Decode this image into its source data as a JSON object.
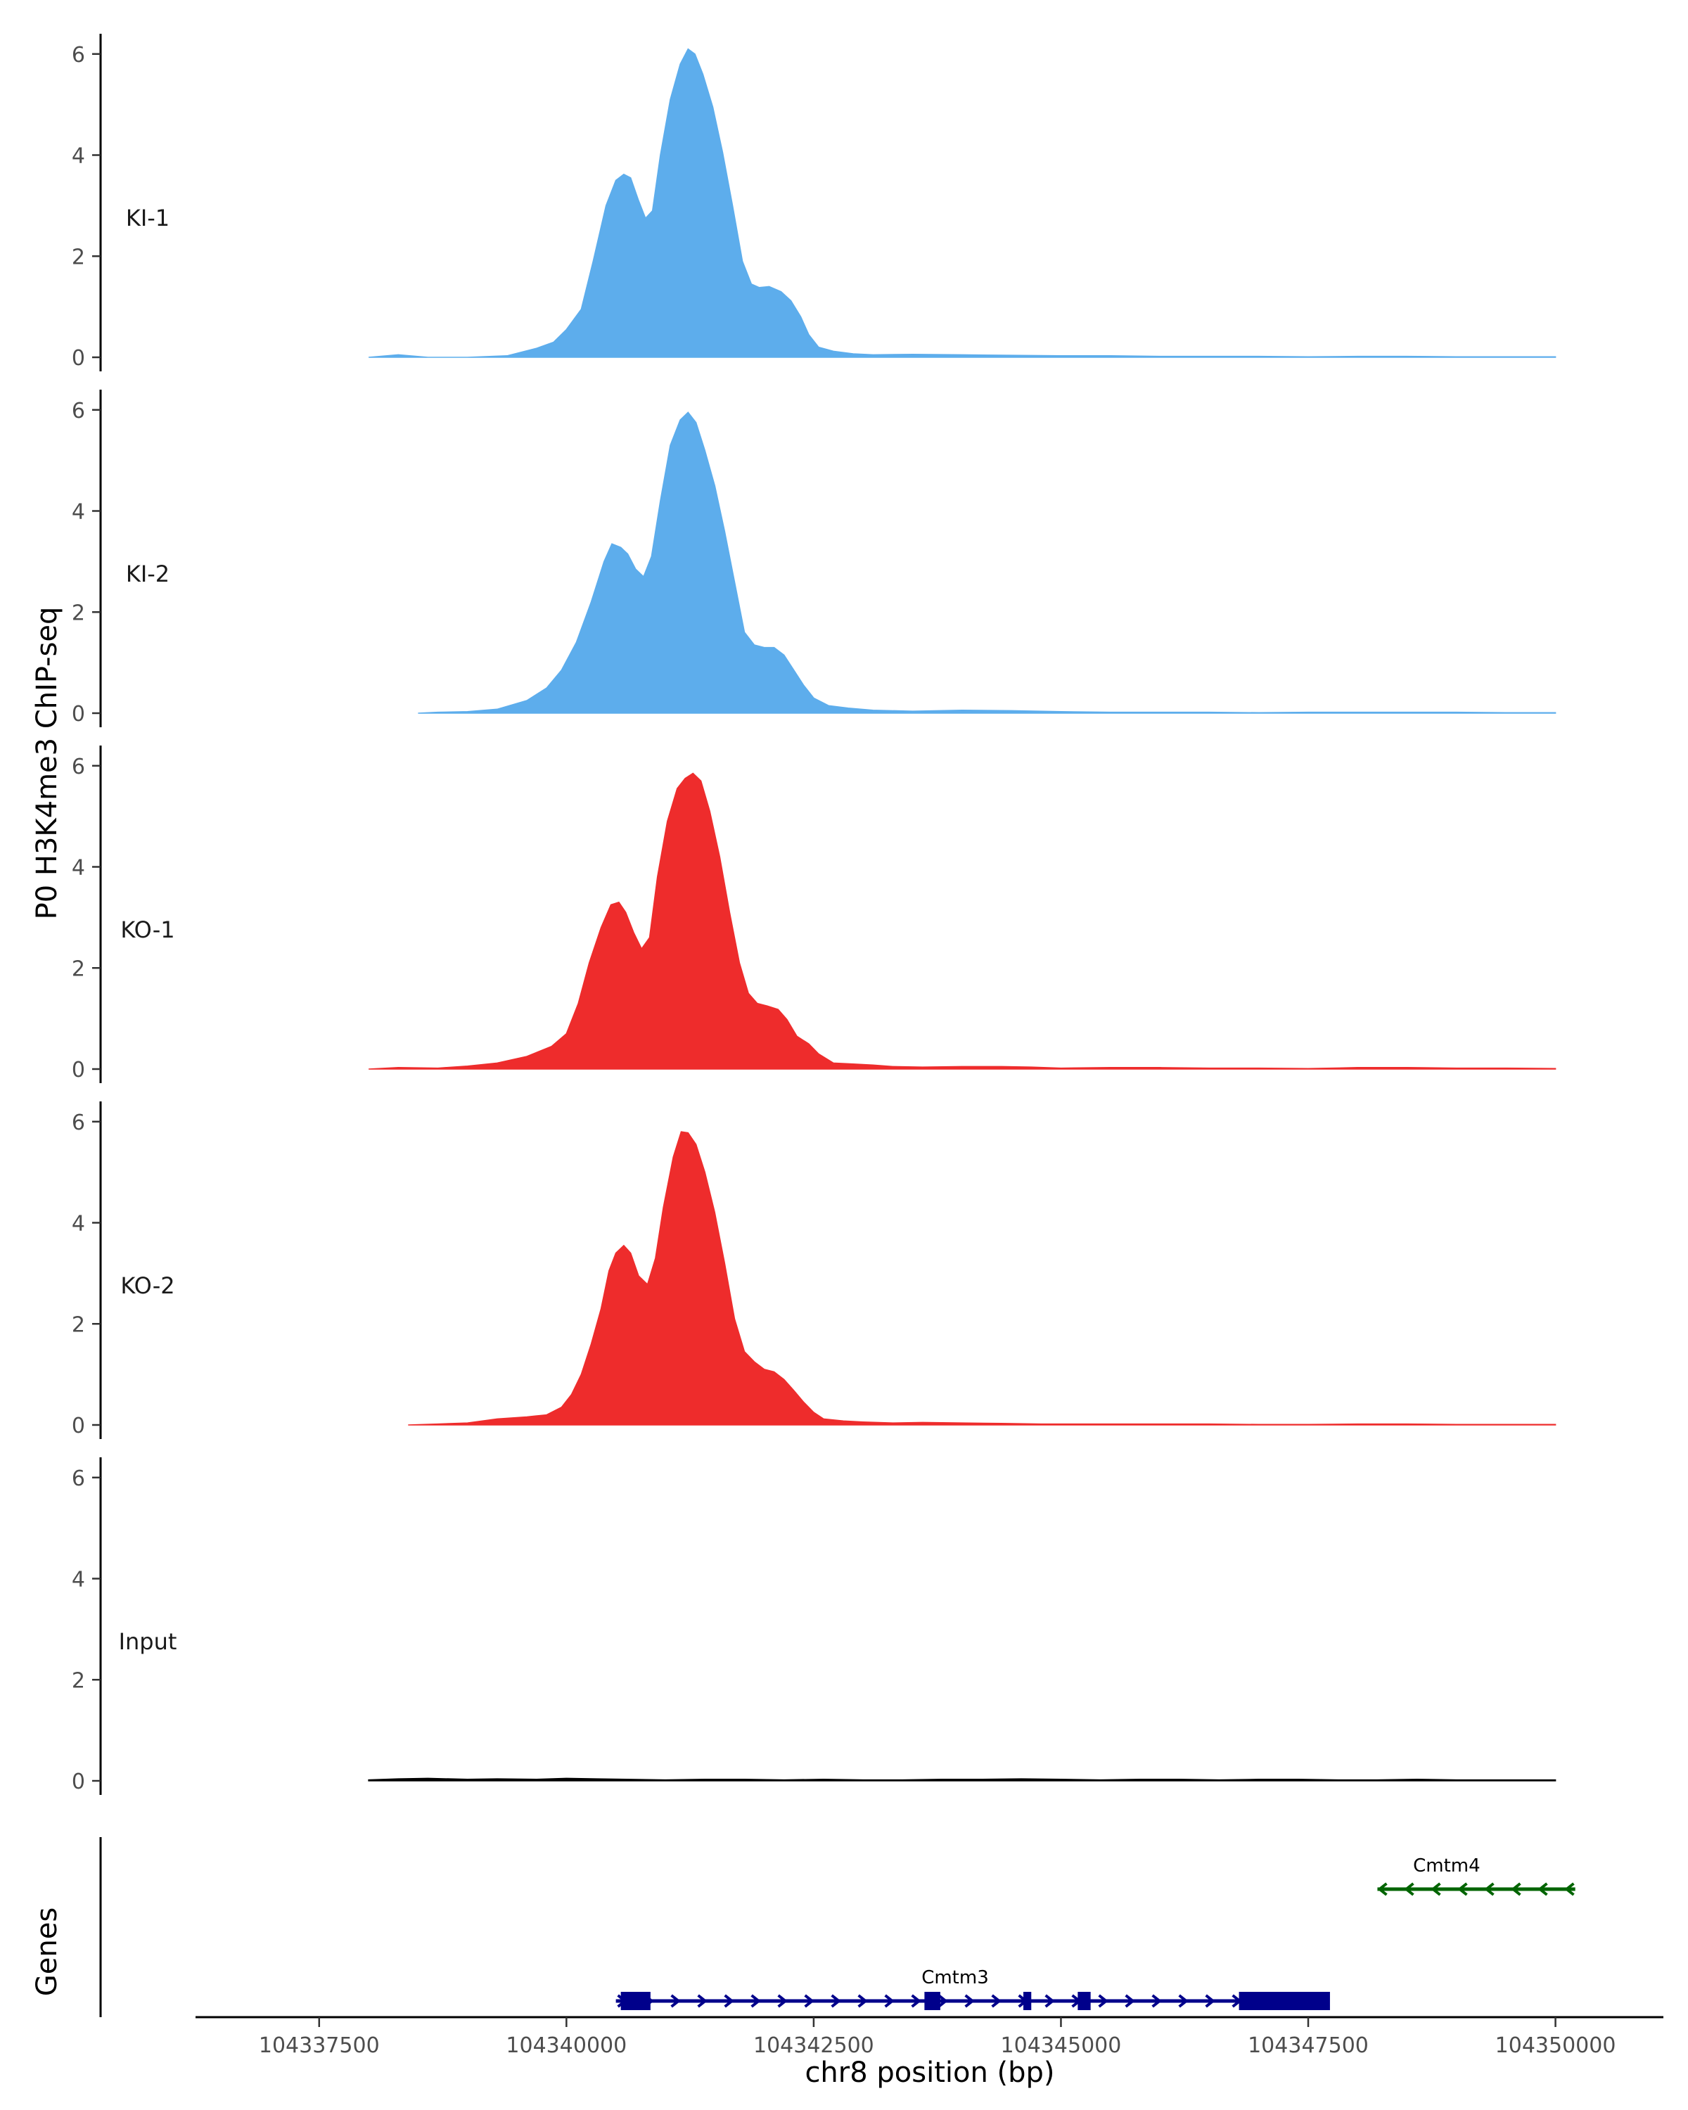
{
  "chart_data": {
    "type": "area",
    "ylabel": "P0 H3K4me3 ChIP-seq",
    "xlabel": "chr8 position (bp)",
    "xlim": [
      104336250,
      104350700
    ],
    "ylim": [
      0,
      6.4
    ],
    "y_ticks": [
      0,
      2,
      4,
      6
    ],
    "y_tick_labels": [
      "0",
      "2",
      "4",
      "6"
    ],
    "x_ticks": [
      104337500,
      104340000,
      104342500,
      104345000,
      104347500,
      104350000
    ],
    "x_tick_labels": [
      "104337500",
      "104340000",
      "104342500",
      "104345000",
      "104347500",
      "104350000"
    ],
    "series": [
      {
        "name": "KI-1",
        "color": "#5dadec",
        "points": [
          [
            104338000,
            0
          ],
          [
            104338300,
            0.05
          ],
          [
            104338600,
            0
          ],
          [
            104339000,
            0
          ],
          [
            104339400,
            0.03
          ],
          [
            104339700,
            0.18
          ],
          [
            104339870,
            0.3
          ],
          [
            104340000,
            0.55
          ],
          [
            104340150,
            0.95
          ],
          [
            104340270,
            1.9
          ],
          [
            104340400,
            3.0
          ],
          [
            104340500,
            3.5
          ],
          [
            104340580,
            3.62
          ],
          [
            104340650,
            3.55
          ],
          [
            104340730,
            3.1
          ],
          [
            104340800,
            2.75
          ],
          [
            104340870,
            2.9
          ],
          [
            104340950,
            4.0
          ],
          [
            104341050,
            5.1
          ],
          [
            104341150,
            5.8
          ],
          [
            104341230,
            6.1
          ],
          [
            104341300,
            6.0
          ],
          [
            104341380,
            5.6
          ],
          [
            104341480,
            4.95
          ],
          [
            104341580,
            4.05
          ],
          [
            104341680,
            3.0
          ],
          [
            104341780,
            1.9
          ],
          [
            104341870,
            1.45
          ],
          [
            104341950,
            1.38
          ],
          [
            104342050,
            1.4
          ],
          [
            104342170,
            1.3
          ],
          [
            104342270,
            1.12
          ],
          [
            104342370,
            0.8
          ],
          [
            104342450,
            0.45
          ],
          [
            104342550,
            0.2
          ],
          [
            104342700,
            0.12
          ],
          [
            104342900,
            0.07
          ],
          [
            104343100,
            0.05
          ],
          [
            104343500,
            0.06
          ],
          [
            104344000,
            0.05
          ],
          [
            104344500,
            0.04
          ],
          [
            104345000,
            0.03
          ],
          [
            104345500,
            0.03
          ],
          [
            104346000,
            0.02
          ],
          [
            104346500,
            0.02
          ],
          [
            104347000,
            0.02
          ],
          [
            104347500,
            0.01
          ],
          [
            104348000,
            0.02
          ],
          [
            104348500,
            0.02
          ],
          [
            104349000,
            0.01
          ],
          [
            104349500,
            0.01
          ],
          [
            104350000,
            0.01
          ]
        ]
      },
      {
        "name": "KI-2",
        "color": "#5dadec",
        "points": [
          [
            104338500,
            0
          ],
          [
            104338700,
            0.02
          ],
          [
            104339000,
            0.03
          ],
          [
            104339300,
            0.08
          ],
          [
            104339600,
            0.25
          ],
          [
            104339800,
            0.5
          ],
          [
            104339950,
            0.85
          ],
          [
            104340100,
            1.4
          ],
          [
            104340250,
            2.2
          ],
          [
            104340380,
            3.0
          ],
          [
            104340460,
            3.35
          ],
          [
            104340550,
            3.28
          ],
          [
            104340620,
            3.15
          ],
          [
            104340700,
            2.85
          ],
          [
            104340780,
            2.7
          ],
          [
            104340860,
            3.1
          ],
          [
            104340950,
            4.2
          ],
          [
            104341050,
            5.3
          ],
          [
            104341150,
            5.8
          ],
          [
            104341230,
            5.95
          ],
          [
            104341310,
            5.75
          ],
          [
            104341400,
            5.2
          ],
          [
            104341500,
            4.5
          ],
          [
            104341600,
            3.6
          ],
          [
            104341700,
            2.6
          ],
          [
            104341800,
            1.6
          ],
          [
            104341900,
            1.35
          ],
          [
            104342000,
            1.3
          ],
          [
            104342100,
            1.3
          ],
          [
            104342200,
            1.15
          ],
          [
            104342300,
            0.85
          ],
          [
            104342400,
            0.55
          ],
          [
            104342500,
            0.3
          ],
          [
            104342650,
            0.15
          ],
          [
            104342850,
            0.1
          ],
          [
            104343100,
            0.06
          ],
          [
            104343500,
            0.04
          ],
          [
            104344000,
            0.06
          ],
          [
            104344500,
            0.05
          ],
          [
            104345000,
            0.03
          ],
          [
            104345500,
            0.02
          ],
          [
            104346000,
            0.02
          ],
          [
            104346500,
            0.02
          ],
          [
            104347000,
            0.01
          ],
          [
            104347500,
            0.02
          ],
          [
            104348000,
            0.02
          ],
          [
            104348500,
            0.02
          ],
          [
            104349000,
            0.02
          ],
          [
            104349500,
            0.01
          ],
          [
            104350000,
            0.01
          ]
        ]
      },
      {
        "name": "KO-1",
        "color": "#ee2c2c",
        "points": [
          [
            104338000,
            0
          ],
          [
            104338300,
            0.03
          ],
          [
            104338700,
            0.02
          ],
          [
            104339000,
            0.06
          ],
          [
            104339300,
            0.12
          ],
          [
            104339600,
            0.25
          ],
          [
            104339850,
            0.45
          ],
          [
            104340000,
            0.7
          ],
          [
            104340120,
            1.3
          ],
          [
            104340230,
            2.1
          ],
          [
            104340350,
            2.8
          ],
          [
            104340450,
            3.25
          ],
          [
            104340530,
            3.3
          ],
          [
            104340600,
            3.1
          ],
          [
            104340680,
            2.7
          ],
          [
            104340760,
            2.38
          ],
          [
            104340840,
            2.6
          ],
          [
            104340920,
            3.8
          ],
          [
            104341020,
            4.9
          ],
          [
            104341120,
            5.55
          ],
          [
            104341200,
            5.75
          ],
          [
            104341280,
            5.85
          ],
          [
            104341360,
            5.7
          ],
          [
            104341450,
            5.1
          ],
          [
            104341550,
            4.2
          ],
          [
            104341650,
            3.1
          ],
          [
            104341750,
            2.1
          ],
          [
            104341840,
            1.5
          ],
          [
            104341930,
            1.3
          ],
          [
            104342030,
            1.25
          ],
          [
            104342140,
            1.18
          ],
          [
            104342230,
            0.98
          ],
          [
            104342330,
            0.65
          ],
          [
            104342450,
            0.5
          ],
          [
            104342550,
            0.3
          ],
          [
            104342700,
            0.12
          ],
          [
            104342900,
            0.1
          ],
          [
            104343100,
            0.08
          ],
          [
            104343300,
            0.05
          ],
          [
            104343600,
            0.04
          ],
          [
            104344000,
            0.05
          ],
          [
            104344400,
            0.05
          ],
          [
            104344700,
            0.04
          ],
          [
            104345000,
            0.02
          ],
          [
            104345500,
            0.03
          ],
          [
            104346000,
            0.03
          ],
          [
            104346500,
            0.02
          ],
          [
            104347000,
            0.02
          ],
          [
            104347500,
            0.01
          ],
          [
            104348000,
            0.03
          ],
          [
            104348500,
            0.03
          ],
          [
            104349000,
            0.02
          ],
          [
            104349500,
            0.02
          ],
          [
            104350000,
            0.01
          ]
        ]
      },
      {
        "name": "KO-2",
        "color": "#ee2c2c",
        "points": [
          [
            104338400,
            0
          ],
          [
            104338700,
            0.02
          ],
          [
            104339000,
            0.04
          ],
          [
            104339300,
            0.12
          ],
          [
            104339600,
            0.16
          ],
          [
            104339800,
            0.2
          ],
          [
            104339950,
            0.35
          ],
          [
            104340050,
            0.6
          ],
          [
            104340150,
            1.0
          ],
          [
            104340250,
            1.6
          ],
          [
            104340350,
            2.3
          ],
          [
            104340430,
            3.05
          ],
          [
            104340500,
            3.4
          ],
          [
            104340580,
            3.55
          ],
          [
            104340650,
            3.4
          ],
          [
            104340730,
            2.95
          ],
          [
            104340820,
            2.78
          ],
          [
            104340900,
            3.3
          ],
          [
            104340980,
            4.3
          ],
          [
            104341080,
            5.3
          ],
          [
            104341160,
            5.8
          ],
          [
            104341230,
            5.78
          ],
          [
            104341310,
            5.55
          ],
          [
            104341400,
            5.0
          ],
          [
            104341500,
            4.2
          ],
          [
            104341600,
            3.2
          ],
          [
            104341700,
            2.1
          ],
          [
            104341800,
            1.45
          ],
          [
            104341900,
            1.25
          ],
          [
            104342000,
            1.1
          ],
          [
            104342100,
            1.05
          ],
          [
            104342200,
            0.9
          ],
          [
            104342300,
            0.68
          ],
          [
            104342400,
            0.45
          ],
          [
            104342500,
            0.25
          ],
          [
            104342600,
            0.12
          ],
          [
            104342800,
            0.08
          ],
          [
            104343000,
            0.06
          ],
          [
            104343300,
            0.04
          ],
          [
            104343600,
            0.05
          ],
          [
            104344000,
            0.04
          ],
          [
            104344400,
            0.03
          ],
          [
            104344800,
            0.02
          ],
          [
            104345200,
            0.02
          ],
          [
            104345600,
            0.02
          ],
          [
            104346000,
            0.02
          ],
          [
            104346500,
            0.02
          ],
          [
            104347000,
            0.01
          ],
          [
            104347500,
            0.01
          ],
          [
            104348000,
            0.02
          ],
          [
            104348500,
            0.02
          ],
          [
            104349000,
            0.01
          ],
          [
            104349500,
            0.01
          ],
          [
            104350000,
            0.01
          ]
        ]
      },
      {
        "name": "Input",
        "color": "#000000",
        "points": [
          [
            104338000,
            0.02
          ],
          [
            104338300,
            0.04
          ],
          [
            104338600,
            0.05
          ],
          [
            104339000,
            0.03
          ],
          [
            104339300,
            0.04
          ],
          [
            104339700,
            0.03
          ],
          [
            104340000,
            0.05
          ],
          [
            104340300,
            0.04
          ],
          [
            104340600,
            0.03
          ],
          [
            104341000,
            0.02
          ],
          [
            104341400,
            0.03
          ],
          [
            104341800,
            0.03
          ],
          [
            104342200,
            0.02
          ],
          [
            104342600,
            0.03
          ],
          [
            104343000,
            0.02
          ],
          [
            104343400,
            0.02
          ],
          [
            104343800,
            0.03
          ],
          [
            104344200,
            0.03
          ],
          [
            104344600,
            0.04
          ],
          [
            104345000,
            0.03
          ],
          [
            104345400,
            0.02
          ],
          [
            104345800,
            0.03
          ],
          [
            104346200,
            0.03
          ],
          [
            104346600,
            0.02
          ],
          [
            104347000,
            0.03
          ],
          [
            104347400,
            0.03
          ],
          [
            104347800,
            0.02
          ],
          [
            104348200,
            0.02
          ],
          [
            104348600,
            0.03
          ],
          [
            104349000,
            0.02
          ],
          [
            104349400,
            0.02
          ],
          [
            104349800,
            0.02
          ],
          [
            104350000,
            0.02
          ]
        ]
      }
    ],
    "genes_label": "Genes",
    "genes": [
      {
        "name": "Cmtm3",
        "strand": "+",
        "color": "#00008b",
        "start": 104340500,
        "end": 104347500,
        "exons": [
          [
            104340550,
            104340850
          ],
          [
            104343620,
            104343780
          ],
          [
            104344620,
            104344700
          ],
          [
            104345170,
            104345300
          ],
          [
            104346800,
            104347720
          ]
        ]
      },
      {
        "name": "Cmtm4",
        "strand": "-",
        "color": "#006400",
        "start": 104348200,
        "end": 104350200,
        "exons": []
      }
    ]
  }
}
